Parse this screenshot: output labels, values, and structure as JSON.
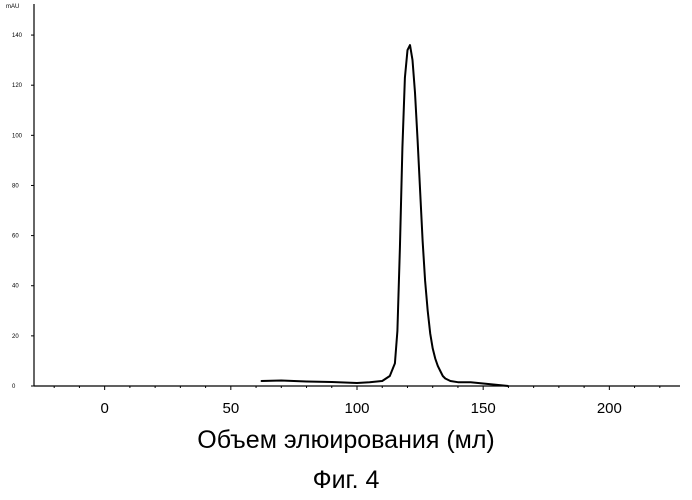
{
  "chart_data": {
    "type": "line",
    "title": "",
    "ylabel": "mAU",
    "xlabel": "Объем элюирования (мл)",
    "xlim": [
      -28,
      228
    ],
    "ylim": [
      0,
      150
    ],
    "x_ticks": [
      0,
      50,
      100,
      150,
      200
    ],
    "y_ticks": [
      0,
      20,
      40,
      60,
      80,
      100,
      120,
      140
    ],
    "grid": false,
    "series": [
      {
        "x": [
          62,
          70,
          80,
          90,
          100,
          105,
          110,
          113,
          115,
          116,
          117,
          118,
          119,
          120,
          121,
          122,
          123,
          124,
          125,
          126,
          127,
          128,
          129,
          130,
          131,
          132,
          133,
          134,
          135,
          137,
          140,
          145,
          150,
          155,
          160
        ],
        "y": [
          2,
          2.2,
          1.8,
          1.6,
          1.2,
          1.5,
          2,
          4,
          9,
          22,
          55,
          95,
          123,
          134,
          136,
          130,
          117,
          98,
          78,
          58,
          42,
          30,
          21,
          15,
          11,
          8,
          6,
          4,
          3,
          2,
          1.5,
          1.5,
          1,
          0.5,
          0
        ]
      }
    ]
  },
  "caption": "Фиг. 4"
}
